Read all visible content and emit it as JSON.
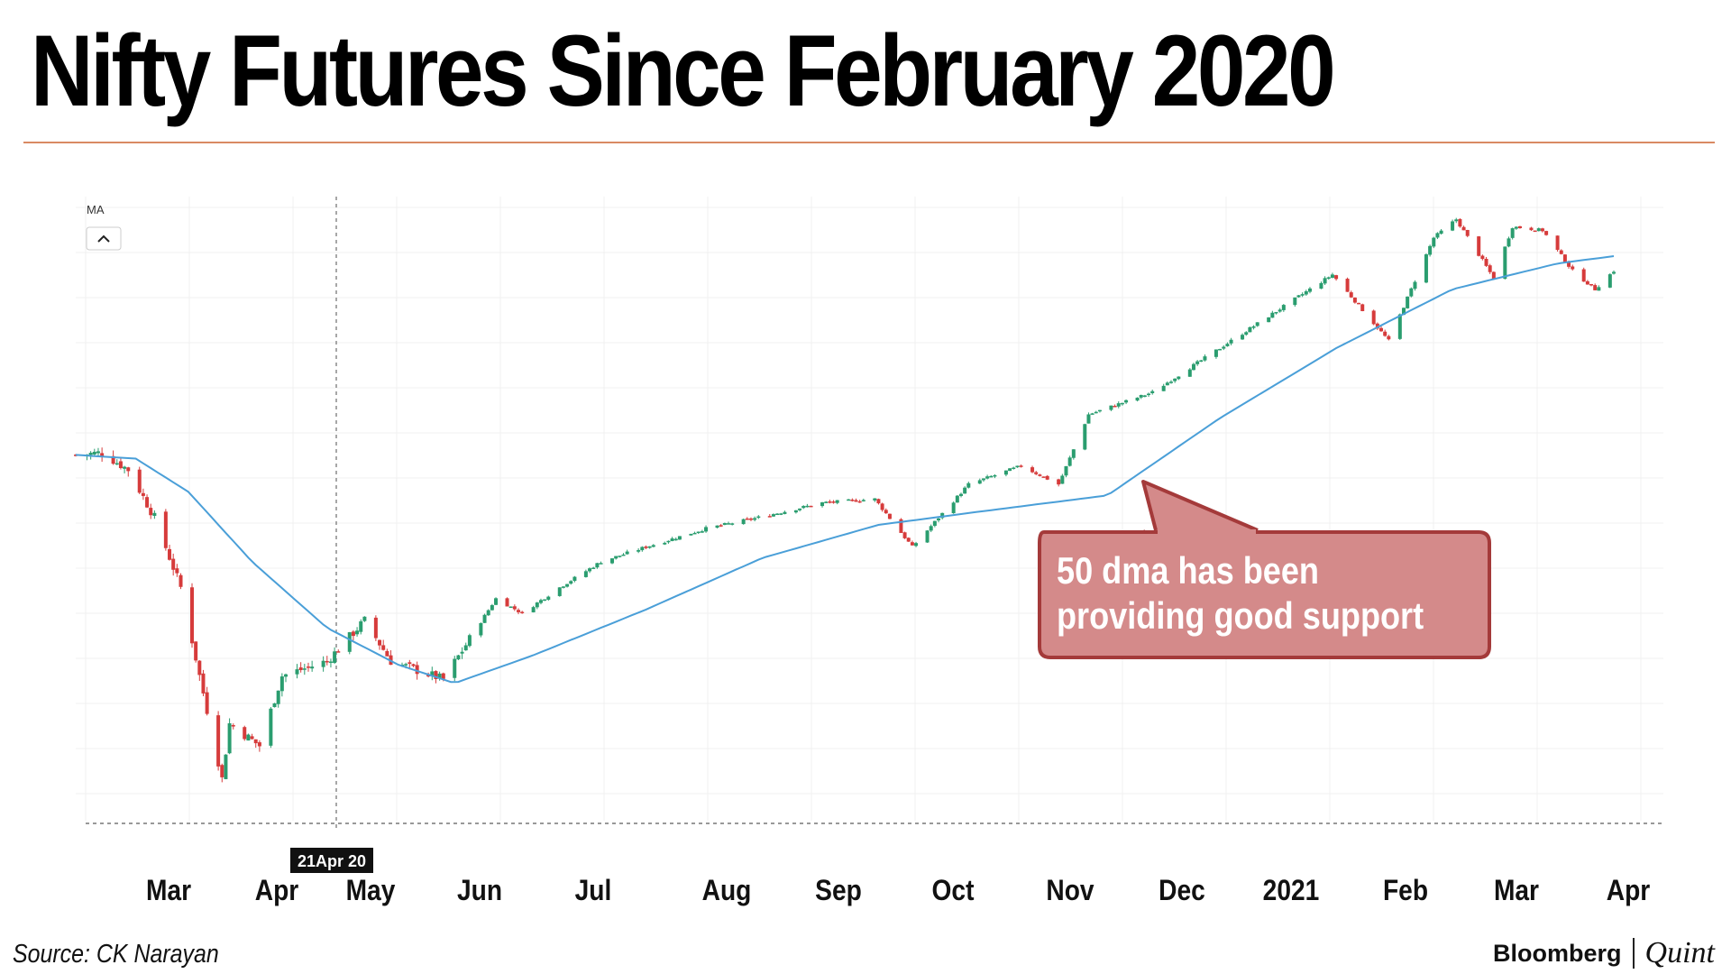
{
  "header": {
    "title": "Nifty Futures Since February 2020"
  },
  "footer": {
    "source": "Source: CK Narayan",
    "brand_left": "Bloomberg",
    "brand_right": "Quint"
  },
  "chart_data": {
    "type": "candlestick",
    "title": "Nifty Futures Since February 2020",
    "indicator_label": "MA",
    "crosshair_label": "21Apr 20",
    "x_ticks": [
      "Mar",
      "Apr",
      "May",
      "Jun",
      "Jul",
      "Aug",
      "Sep",
      "Oct",
      "Nov",
      "Dec",
      "2021",
      "Feb",
      "Mar",
      "Apr"
    ],
    "annotation": {
      "line1": "50 dma has been",
      "line2": "providing good support"
    },
    "colors": {
      "up": "#2a9d6f",
      "down": "#d63b3b",
      "ma": "#4a9fd8",
      "callout_fill": "#d48a8a",
      "callout_border": "#a43a3a",
      "rule": "#d98a63"
    },
    "y_range": [
      7500,
      15400
    ],
    "price_path": [
      {
        "date": "2020-02-14",
        "value": 12100
      },
      {
        "date": "2020-02-21",
        "value": 12130
      },
      {
        "date": "2020-02-28",
        "value": 11900
      },
      {
        "date": "2020-03-06",
        "value": 11250
      },
      {
        "date": "2020-03-13",
        "value": 10300
      },
      {
        "date": "2020-03-18",
        "value": 9100
      },
      {
        "date": "2020-03-24",
        "value": 7700
      },
      {
        "date": "2020-03-26",
        "value": 8450
      },
      {
        "date": "2020-04-03",
        "value": 8150
      },
      {
        "date": "2020-04-09",
        "value": 9100
      },
      {
        "date": "2020-04-21",
        "value": 9300
      },
      {
        "date": "2020-05-01",
        "value": 9850
      },
      {
        "date": "2020-05-08",
        "value": 9300
      },
      {
        "date": "2020-05-22",
        "value": 9050
      },
      {
        "date": "2020-06-05",
        "value": 10150
      },
      {
        "date": "2020-06-12",
        "value": 9950
      },
      {
        "date": "2020-06-22",
        "value": 10300
      },
      {
        "date": "2020-07-03",
        "value": 10650
      },
      {
        "date": "2020-07-15",
        "value": 10850
      },
      {
        "date": "2020-07-31",
        "value": 11100
      },
      {
        "date": "2020-08-14",
        "value": 11250
      },
      {
        "date": "2020-08-31",
        "value": 11450
      },
      {
        "date": "2020-09-14",
        "value": 11500
      },
      {
        "date": "2020-09-24",
        "value": 10850
      },
      {
        "date": "2020-10-09",
        "value": 11700
      },
      {
        "date": "2020-10-23",
        "value": 11950
      },
      {
        "date": "2020-11-02",
        "value": 11700
      },
      {
        "date": "2020-11-10",
        "value": 12650
      },
      {
        "date": "2020-11-27",
        "value": 12950
      },
      {
        "date": "2020-12-15",
        "value": 13550
      },
      {
        "date": "2021-01-14",
        "value": 14550
      },
      {
        "date": "2021-01-29",
        "value": 13650
      },
      {
        "date": "2021-02-10",
        "value": 15050
      },
      {
        "date": "2021-02-16",
        "value": 15300
      },
      {
        "date": "2021-02-26",
        "value": 14500
      },
      {
        "date": "2021-03-03",
        "value": 15200
      },
      {
        "date": "2021-03-11",
        "value": 15150
      },
      {
        "date": "2021-03-19",
        "value": 14600
      },
      {
        "date": "2021-03-25",
        "value": 14350
      },
      {
        "date": "2021-03-30",
        "value": 14600
      }
    ],
    "ma_path": [
      {
        "date": "2020-02-14",
        "value": 12100
      },
      {
        "date": "2020-03-01",
        "value": 12050
      },
      {
        "date": "2020-03-15",
        "value": 11600
      },
      {
        "date": "2020-04-01",
        "value": 10650
      },
      {
        "date": "2020-04-21",
        "value": 9750
      },
      {
        "date": "2020-05-10",
        "value": 9250
      },
      {
        "date": "2020-05-25",
        "value": 9000
      },
      {
        "date": "2020-06-15",
        "value": 9380
      },
      {
        "date": "2020-07-15",
        "value": 10000
      },
      {
        "date": "2020-08-15",
        "value": 10700
      },
      {
        "date": "2020-09-15",
        "value": 11150
      },
      {
        "date": "2020-10-15",
        "value": 11350
      },
      {
        "date": "2020-11-15",
        "value": 11550
      },
      {
        "date": "2020-12-15",
        "value": 12600
      },
      {
        "date": "2021-01-15",
        "value": 13550
      },
      {
        "date": "2021-02-15",
        "value": 14350
      },
      {
        "date": "2021-03-15",
        "value": 14700
      },
      {
        "date": "2021-03-30",
        "value": 14800
      }
    ]
  }
}
